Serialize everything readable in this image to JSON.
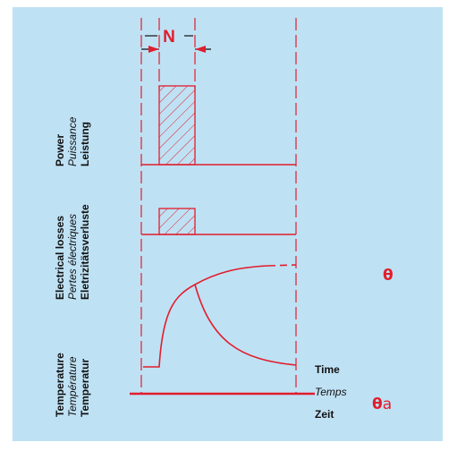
{
  "colors": {
    "background": "#bfe1f4",
    "accent": "#e01e2d",
    "text": "#111111"
  },
  "duration_label": "N",
  "rows": {
    "power": [
      "Power",
      "Puissance",
      "Leistung"
    ],
    "electrical_losses": [
      "Electrical losses",
      "Pertes électriques",
      "Eletrizitätsverluste"
    ],
    "temperature": [
      "Temperature",
      "Température",
      "Temperatur"
    ]
  },
  "time_axis": [
    "Time",
    "Temps",
    "Zeit"
  ],
  "symbols": {
    "theta": "θ",
    "theta_ambient_base": "θ",
    "theta_ambient_sub": "a"
  }
}
